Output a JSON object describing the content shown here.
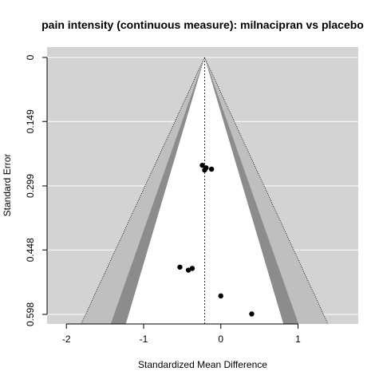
{
  "chart_data": {
    "type": "scatter",
    "title": "pain intensity (continuous measure): milnacipran vs placebo",
    "xlabel": "Standardized Mean Difference",
    "ylabel": "Standard Error",
    "xlim": [
      -2.25,
      1.78
    ],
    "ylim": [
      0,
      0.62
    ],
    "y_reversed": true,
    "x_ticks": [
      -2,
      -1,
      0,
      1
    ],
    "x_tick_labels": [
      "-2",
      "-1",
      "0",
      "1"
    ],
    "y_ticks": [
      0,
      0.149,
      0.299,
      0.448,
      0.598
    ],
    "y_tick_labels": [
      "0",
      "0.149",
      "0.299",
      "0.448",
      "0.598"
    ],
    "grid": true,
    "pooled_estimate": -0.21,
    "contour_regions": [
      {
        "level": "90%",
        "z": 1.645,
        "color": "#ffffff"
      },
      {
        "level": "95%",
        "z": 1.96,
        "color": "#8c8c8c"
      },
      {
        "level": "99%",
        "z": 2.576,
        "color": "#bfbfbf"
      }
    ],
    "outer_background": "#d3d3d3",
    "point_color": "#000000",
    "points": [
      {
        "x": -0.24,
        "y": 0.251
      },
      {
        "x": -0.21,
        "y": 0.262
      },
      {
        "x": -0.19,
        "y": 0.257
      },
      {
        "x": -0.12,
        "y": 0.26
      },
      {
        "x": -0.53,
        "y": 0.488
      },
      {
        "x": -0.42,
        "y": 0.495
      },
      {
        "x": -0.37,
        "y": 0.491
      },
      {
        "x": 0.0,
        "y": 0.555
      },
      {
        "x": 0.4,
        "y": 0.597
      }
    ]
  }
}
